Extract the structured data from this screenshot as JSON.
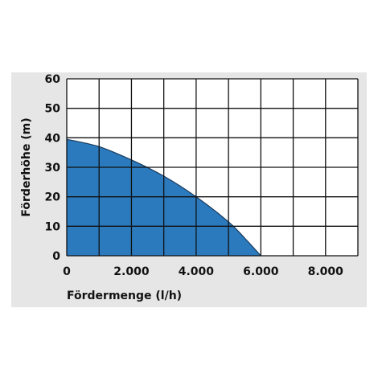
{
  "chart_data": {
    "type": "area",
    "xlabel": "Fördermenge (l/h)",
    "ylabel": "Förderhöhe (m)",
    "xlim": [
      0,
      9000
    ],
    "ylim": [
      0,
      60
    ],
    "x_tick_values": [
      0,
      2000,
      4000,
      6000,
      8000
    ],
    "x_tick_labels": [
      "0",
      "2.000",
      "4.000",
      "6.000",
      "8.000"
    ],
    "y_tick_values": [
      0,
      10,
      20,
      30,
      40,
      50,
      60
    ],
    "y_tick_labels": [
      "0",
      "10",
      "20",
      "30",
      "40",
      "50",
      "60"
    ],
    "grid": true,
    "grid_x_step": 1000,
    "grid_y_step": 10,
    "series": [
      {
        "x": [
          0,
          1000,
          2000,
          3000,
          4000,
          5000,
          5500,
          6000
        ],
        "y": [
          39.5,
          37,
          32.5,
          27,
          20,
          11.5,
          6,
          0
        ],
        "color": "#2a7abd"
      }
    ],
    "colors": {
      "panel": "#e6e6e6",
      "plot_bg": "#ffffff",
      "grid": "#111111",
      "fill": "#2a7abd",
      "outline": "#1a3a5c"
    }
  }
}
